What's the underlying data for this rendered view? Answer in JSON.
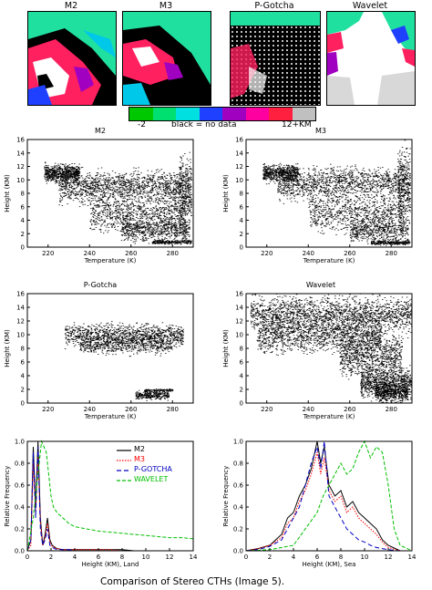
{
  "map_panels": [
    {
      "title": "M2"
    },
    {
      "title": "M3"
    },
    {
      "title": "P-Gotcha"
    },
    {
      "title": "Wavelet"
    }
  ],
  "colorbar": {
    "min_label": "-2",
    "middle_label": "black = no data",
    "max_label": "12+KM",
    "colors": [
      "#00c800",
      "#00e070",
      "#00e0e0",
      "#2040ff",
      "#a000c0",
      "#ff00a0",
      "#ff2040",
      "#c0c0c0"
    ]
  },
  "colors": {
    "M2": "#000000",
    "M3": "#ff0000",
    "P-GOTCHA": "#0000c0",
    "WAVELET": "#00c000"
  },
  "caption": "Comparison of  Stereo CTHs (Image 5).",
  "chart_data": [
    {
      "type": "scatter",
      "title": "M2",
      "xlabel": "Temperature (K)",
      "ylabel": "Height (KM)",
      "xlim": [
        210,
        290
      ],
      "ylim": [
        0,
        16
      ],
      "xticks": [
        220,
        240,
        260,
        280
      ],
      "yticks": [
        0,
        2,
        4,
        6,
        8,
        10,
        12,
        14,
        16
      ]
    },
    {
      "type": "scatter",
      "title": "M3",
      "xlabel": "Temperature (K)",
      "ylabel": "Height (KM)",
      "xlim": [
        210,
        290
      ],
      "ylim": [
        0,
        16
      ],
      "xticks": [
        220,
        240,
        260,
        280
      ],
      "yticks": [
        0,
        2,
        4,
        6,
        8,
        10,
        12,
        14,
        16
      ]
    },
    {
      "type": "scatter",
      "title": "P-Gotcha",
      "xlabel": "Temperature (K)",
      "ylabel": "Height (KM)",
      "xlim": [
        210,
        290
      ],
      "ylim": [
        0,
        16
      ],
      "xticks": [
        220,
        240,
        260,
        280
      ],
      "yticks": [
        0,
        2,
        4,
        6,
        8,
        10,
        12,
        14,
        16
      ]
    },
    {
      "type": "scatter",
      "title": "Wavelet",
      "xlabel": "Temperature (K)",
      "ylabel": "Height (KM)",
      "xlim": [
        210,
        290
      ],
      "ylim": [
        0,
        16
      ],
      "xticks": [
        220,
        240,
        260,
        280
      ],
      "yticks": [
        0,
        2,
        4,
        6,
        8,
        10,
        12,
        14,
        16
      ]
    },
    {
      "type": "line",
      "xlabel": "Height (KM), Land",
      "ylabel": "Relative Frequency",
      "xlim": [
        0,
        14
      ],
      "ylim": [
        0,
        1.0
      ],
      "xticks": [
        0,
        2,
        4,
        6,
        8,
        10,
        12,
        14
      ],
      "yticks": [
        "0.0",
        "0.2",
        "0.4",
        "0.6",
        "0.8",
        "1.0"
      ],
      "legend": [
        "M2",
        "M3",
        "P-GOTCHA",
        "WAVELET"
      ],
      "legend_placement": "top-right",
      "series": [
        {
          "name": "M2",
          "x": [
            0,
            0.3,
            0.5,
            0.7,
            0.9,
            1.1,
            1.3,
            1.5,
            1.7,
            1.9,
            2.1,
            2.5,
            3,
            3.5,
            4,
            5,
            6,
            7,
            8,
            9,
            10,
            11,
            12,
            13,
            14
          ],
          "y": [
            0,
            0.1,
            0.95,
            0.4,
            1.0,
            0.3,
            0.05,
            0.15,
            0.3,
            0.1,
            0.05,
            0.02,
            0.01,
            0.01,
            0.01,
            0.01,
            0.01,
            0.01,
            0.01,
            0,
            0,
            0,
            0,
            0,
            0
          ]
        },
        {
          "name": "M3",
          "x": [
            0,
            0.3,
            0.5,
            0.7,
            0.9,
            1.1,
            1.3,
            1.5,
            1.7,
            1.9,
            2.1,
            2.5,
            3,
            3.5,
            4,
            5,
            6,
            7,
            8,
            9,
            10,
            11,
            12,
            13,
            14
          ],
          "y": [
            0,
            0.05,
            0.8,
            0.35,
            0.85,
            0.25,
            0.05,
            0.12,
            0.25,
            0.08,
            0.04,
            0.02,
            0.01,
            0.01,
            0.01,
            0.01,
            0.01,
            0.01,
            0,
            0,
            0,
            0,
            0,
            0,
            0
          ]
        },
        {
          "name": "P-GOTCHA",
          "x": [
            0,
            0.3,
            0.5,
            0.7,
            0.9,
            1.1,
            1.3,
            1.5,
            1.7,
            1.9,
            2.1,
            2.5,
            3,
            3.5,
            4,
            5,
            6,
            7,
            8,
            9,
            10,
            11,
            12,
            13,
            14
          ],
          "y": [
            0,
            0.1,
            0.9,
            0.3,
            0.95,
            0.2,
            0.05,
            0.1,
            0.2,
            0.05,
            0.03,
            0.01,
            0.01,
            0.01,
            0,
            0,
            0,
            0,
            0,
            0,
            0,
            0,
            0,
            0,
            0
          ]
        },
        {
          "name": "WAVELET",
          "x": [
            0,
            0.5,
            1,
            1.2,
            1.4,
            1.6,
            1.8,
            2,
            2.2,
            2.5,
            3,
            3.5,
            4,
            5,
            6,
            7,
            8,
            9,
            10,
            11,
            12,
            13,
            14
          ],
          "y": [
            0,
            0.3,
            0.8,
            1.0,
            0.95,
            0.9,
            0.7,
            0.5,
            0.4,
            0.35,
            0.3,
            0.25,
            0.22,
            0.2,
            0.18,
            0.17,
            0.16,
            0.15,
            0.14,
            0.13,
            0.12,
            0.12,
            0.11
          ]
        }
      ]
    },
    {
      "type": "line",
      "xlabel": "Height (KM), Sea",
      "ylabel": "Relative Frequency",
      "xlim": [
        0,
        14
      ],
      "ylim": [
        0,
        1.0
      ],
      "xticks": [
        0,
        2,
        4,
        6,
        8,
        10,
        12,
        14
      ],
      "yticks": [
        "0.0",
        "0.2",
        "0.4",
        "0.6",
        "0.8",
        "1.0"
      ],
      "series": [
        {
          "name": "M2",
          "x": [
            0,
            1,
            2,
            3,
            3.5,
            4,
            4.5,
            5,
            5.5,
            6,
            6.3,
            6.6,
            7,
            7.5,
            8,
            8.5,
            9,
            9.5,
            10,
            10.5,
            11,
            11.5,
            12,
            13,
            14
          ],
          "y": [
            0,
            0.02,
            0.05,
            0.15,
            0.3,
            0.35,
            0.5,
            0.6,
            0.75,
            1.0,
            0.8,
            0.95,
            0.6,
            0.5,
            0.55,
            0.4,
            0.45,
            0.35,
            0.3,
            0.25,
            0.2,
            0.1,
            0.05,
            0,
            0
          ]
        },
        {
          "name": "M3",
          "x": [
            0,
            1,
            2,
            3,
            3.5,
            4,
            4.5,
            5,
            5.5,
            6,
            6.3,
            6.6,
            7,
            7.5,
            8,
            8.5,
            9,
            9.5,
            10,
            10.5,
            11,
            11.5,
            12,
            13,
            14
          ],
          "y": [
            0,
            0.02,
            0.05,
            0.12,
            0.25,
            0.3,
            0.45,
            0.55,
            0.7,
            0.9,
            0.7,
            0.85,
            0.55,
            0.45,
            0.5,
            0.35,
            0.4,
            0.3,
            0.25,
            0.2,
            0.15,
            0.08,
            0.03,
            0,
            0
          ]
        },
        {
          "name": "P-GOTCHA",
          "x": [
            0,
            1,
            2,
            3,
            3.5,
            4,
            4.5,
            5,
            5.5,
            6,
            6.3,
            6.6,
            7,
            7.5,
            8,
            8.5,
            9,
            9.5,
            10,
            10.5,
            11,
            11.5,
            12,
            13,
            14
          ],
          "y": [
            0,
            0.01,
            0.04,
            0.1,
            0.2,
            0.3,
            0.4,
            0.6,
            0.8,
            0.95,
            0.75,
            1.0,
            0.5,
            0.4,
            0.3,
            0.2,
            0.15,
            0.1,
            0.08,
            0.05,
            0.03,
            0.02,
            0.01,
            0,
            0
          ]
        },
        {
          "name": "WAVELET",
          "x": [
            0,
            2,
            4,
            5,
            6,
            6.5,
            7,
            7.5,
            8,
            8.5,
            9,
            9.5,
            10,
            10.5,
            11,
            11.5,
            12,
            12.5,
            13,
            14
          ],
          "y": [
            0,
            0.01,
            0.05,
            0.2,
            0.35,
            0.5,
            0.6,
            0.7,
            0.8,
            0.7,
            0.75,
            0.9,
            1.0,
            0.85,
            0.95,
            0.9,
            0.6,
            0.2,
            0.05,
            0
          ]
        }
      ]
    }
  ]
}
